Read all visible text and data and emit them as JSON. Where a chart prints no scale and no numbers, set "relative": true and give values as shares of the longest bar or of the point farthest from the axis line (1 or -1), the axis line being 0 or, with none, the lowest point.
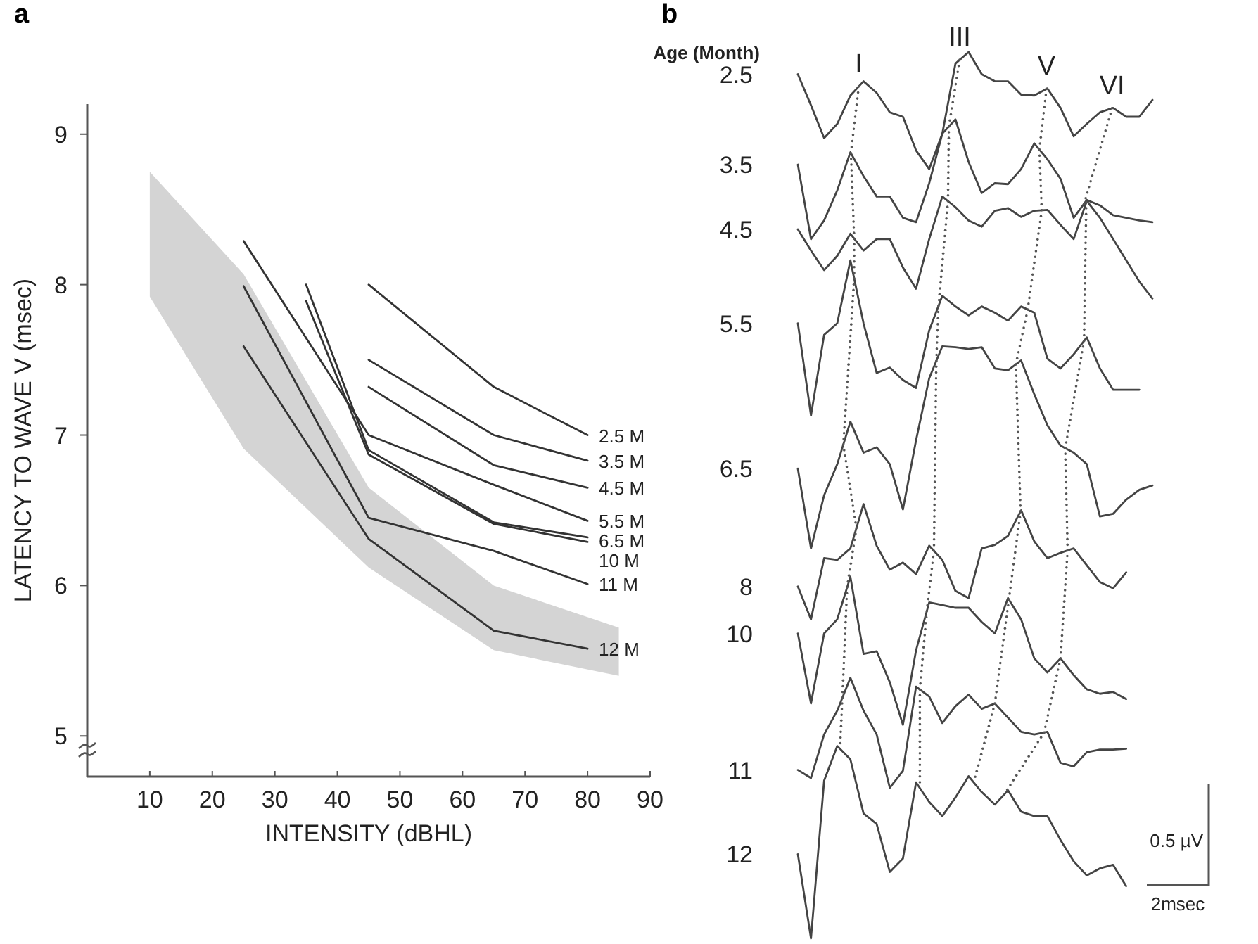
{
  "chart_data": [
    {
      "type": "line",
      "title": "a",
      "xlabel": "INTENSITY (dBHL)",
      "ylabel": "LATENCY TO WAVE V (msec)",
      "xlim": [
        0,
        90
      ],
      "xticks": [
        10,
        20,
        30,
        40,
        50,
        60,
        70,
        80,
        90
      ],
      "ylim": [
        4.73,
        9.2
      ],
      "yticks": [
        5,
        6,
        7,
        8,
        9
      ],
      "series": [
        {
          "type": "area",
          "color": "#d4d4d4",
          "x": [
            10,
            25,
            45,
            65,
            85
          ],
          "values": [
            null,
            null,
            null,
            null,
            null
          ],
          "lower": [
            7.92,
            6.91,
            6.12,
            5.57,
            5.4
          ],
          "upper": [
            8.75,
            8.07,
            6.65,
            6.0,
            5.72
          ]
        },
        {
          "name": "2.5 M",
          "color": "#333333",
          "x": [
            45,
            65,
            80
          ],
          "values": [
            8.0,
            7.32,
            7.0
          ]
        },
        {
          "name": "3.5 M",
          "color": "#333333",
          "x": [
            45,
            65,
            80
          ],
          "values": [
            7.5,
            7.0,
            6.83
          ]
        },
        {
          "name": "4.5 M",
          "color": "#333333",
          "x": [
            45,
            65,
            80
          ],
          "values": [
            7.32,
            6.8,
            6.65
          ]
        },
        {
          "name": "5.5 M",
          "color": "#333333",
          "x": [
            25,
            45,
            65,
            80
          ],
          "values": [
            8.29,
            7.0,
            6.67,
            6.43
          ]
        },
        {
          "name": "6.5 M",
          "color": "#333333",
          "x": [
            35,
            45,
            65,
            80
          ],
          "values": [
            8.0,
            6.9,
            6.42,
            6.32
          ]
        },
        {
          "name": "10 M",
          "color": "#333333",
          "x": [
            35,
            45,
            65,
            80
          ],
          "values": [
            7.89,
            6.87,
            6.41,
            6.29
          ]
        },
        {
          "name": "11 M",
          "color": "#333333",
          "x": [
            25,
            45,
            65,
            80
          ],
          "values": [
            7.99,
            6.45,
            6.23,
            6.01
          ]
        },
        {
          "name": "12 M",
          "color": "#333333",
          "x": [
            25,
            45,
            65,
            80
          ],
          "values": [
            7.59,
            6.31,
            5.7,
            5.58
          ]
        }
      ]
    },
    {
      "type": "line",
      "title": "b",
      "relative": true,
      "legend_title": "Age (Month)",
      "annotations": [
        "I",
        "III",
        "V",
        "VI",
        "0.5 µV",
        "2msec"
      ],
      "categories": [
        null,
        null,
        null,
        null,
        null,
        null,
        null,
        null,
        null,
        null,
        null,
        null,
        null,
        null,
        null,
        null,
        null,
        null,
        null,
        null,
        null,
        null,
        null,
        null,
        null,
        null,
        null,
        null
      ],
      "series": [
        {
          "name": "2.5",
          "color": "#444444",
          "values": [
            0.975,
            0.94,
            0.903,
            0.919,
            0.951,
            0.967,
            0.954,
            0.932,
            0.927,
            0.889,
            0.868,
            0.908,
            0.987,
            1,
            0.975,
            0.967,
            0.967,
            0.952,
            0.951,
            0.959,
            0.937,
            0.905,
            0.919,
            0.932,
            0.937,
            0.927,
            0.927,
            0.946
          ]
        },
        {
          "name": "3.5",
          "color": "#444444",
          "values": [
            0.873,
            0.789,
            0.81,
            0.844,
            0.887,
            0.86,
            0.837,
            0.837,
            0.813,
            0.808,
            0.852,
            0.908,
            0.924,
            0.876,
            0.841,
            0.852,
            0.851,
            0.868,
            0.897,
            0.879,
            0.857,
            0.813,
            0.833,
            0.827,
            0.816,
            0.813,
            0.81,
            0.808
          ]
        },
        {
          "name": "4.5",
          "color": "#444444",
          "values": [
            0.8,
            0.776,
            0.754,
            0.77,
            0.795,
            0.776,
            0.789,
            0.789,
            0.757,
            0.733,
            0.789,
            0.837,
            0.825,
            0.81,
            0.803,
            0.821,
            0.824,
            0.814,
            0.821,
            0.822,
            0.805,
            0.789,
            0.832,
            0.813,
            0.789,
            0.765,
            0.741,
            0.722
          ]
        },
        {
          "name": "5.5",
          "color": "#444444",
          "values": [
            0.694,
            0.59,
            0.681,
            0.694,
            0.765,
            0.694,
            0.638,
            0.644,
            0.63,
            0.621,
            0.686,
            0.725,
            0.713,
            0.703,
            0.713,
            0.706,
            0.697,
            0.713,
            0.706,
            0.654,
            0.643,
            0.659,
            0.678,
            0.643,
            0.619,
            0.619,
            0.619,
            null
          ]
        },
        {
          "name": "6.5",
          "color": "#444444",
          "values": [
            0.53,
            0.44,
            0.5,
            0.535,
            0.583,
            0.548,
            0.554,
            0.535,
            0.484,
            0.562,
            0.632,
            0.668,
            0.667,
            0.665,
            0.667,
            0.643,
            0.641,
            0.652,
            0.614,
            0.579,
            0.556,
            0.548,
            0.535,
            0.476,
            0.479,
            0.495,
            0.506,
            0.511
          ]
        },
        {
          "name": "8",
          "color": "#444444",
          "values": [
            0.397,
            0.36,
            0.429,
            0.427,
            0.44,
            0.49,
            0.443,
            0.416,
            0.424,
            0.411,
            0.443,
            0.427,
            0.392,
            0.384,
            0.44,
            0.444,
            0.454,
            0.483,
            0.448,
            0.429,
            0.435,
            0.44,
            0.421,
            0.402,
            0.395,
            0.413,
            null,
            null
          ]
        },
        {
          "name": "10",
          "color": "#444444",
          "values": [
            0.344,
            0.265,
            0.344,
            0.36,
            0.408,
            0.321,
            0.324,
            0.289,
            0.241,
            0.325,
            0.379,
            0.376,
            0.373,
            0.373,
            0.357,
            0.344,
            0.384,
            0.36,
            0.316,
            0.3,
            0.316,
            0.297,
            0.281,
            0.276,
            0.278,
            0.27,
            null,
            null
          ]
        },
        {
          "name": "11",
          "color": "#444444",
          "values": [
            0.19,
            0.181,
            0.23,
            0.257,
            0.294,
            0.257,
            0.23,
            0.17,
            0.189,
            0.284,
            0.273,
            0.243,
            0.262,
            0.275,
            0.259,
            0.265,
            0.249,
            0.233,
            0.23,
            0.233,
            0.198,
            0.194,
            0.21,
            0.213,
            0.213,
            0.214,
            null,
            null
          ]
        },
        {
          "name": "12",
          "color": "#444444",
          "values": [
            0.095,
            0,
            0.178,
            0.217,
            0.202,
            0.141,
            0.129,
            0.075,
            0.09,
            0.176,
            0.154,
            0.138,
            0.159,
            0.183,
            0.165,
            0.151,
            0.167,
            0.143,
            0.138,
            0.138,
            0.111,
            0.087,
            0.071,
            0.079,
            0.083,
            0.059,
            null,
            null
          ]
        }
      ]
    }
  ]
}
